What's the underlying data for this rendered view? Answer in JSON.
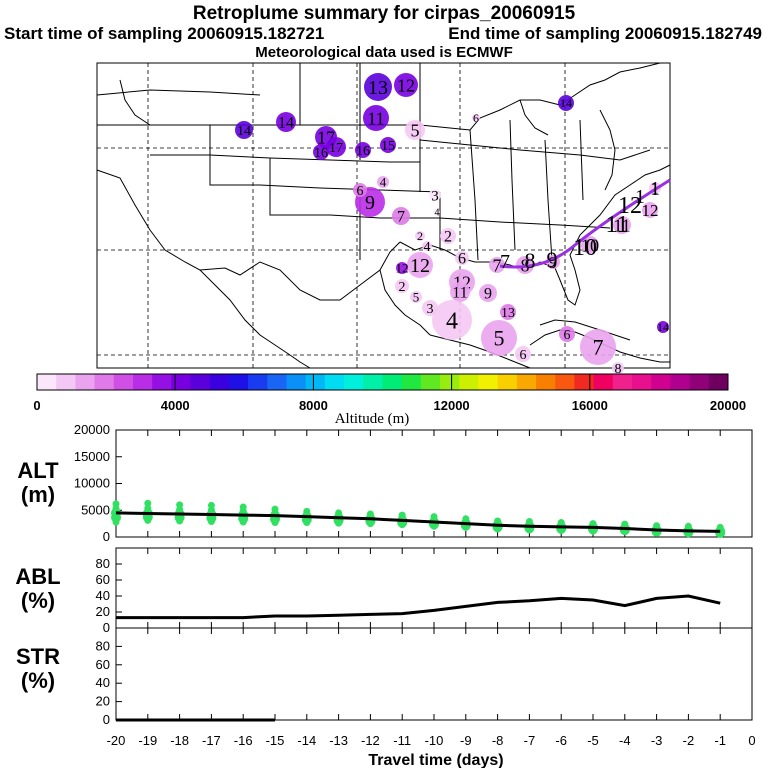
{
  "header": {
    "title": "Retroplume summary for cirpas_20060915",
    "start": "Start time of sampling 20060915.182721",
    "end": "End time of sampling 20060915.182749",
    "met": "Meteorological data used is ECMWF"
  },
  "colors": {
    "light_purple": "#e8a0f0",
    "mid_purple": "#c040e0",
    "deep_purple": "#8000d0",
    "blue": "#3010e0",
    "track": "#9a30e0",
    "green": "#30e060"
  },
  "colorbar": {
    "title": "Altitude (m)",
    "ticks": [
      "0",
      "4000",
      "8000",
      "12000",
      "16000",
      "20000"
    ],
    "colors": [
      "#fbe6fb",
      "#f4c8f4",
      "#eaa3ee",
      "#df7ae8",
      "#d050e6",
      "#b92de6",
      "#9710e3",
      "#7800e0",
      "#5a00dc",
      "#3a00e0",
      "#2010e8",
      "#1a3cf0",
      "#1a66f4",
      "#0a90f6",
      "#00b8f4",
      "#00dcf2",
      "#00f0dc",
      "#00f0a8",
      "#00ec78",
      "#20e840",
      "#60e820",
      "#98ec10",
      "#ccf000",
      "#f0f000",
      "#f8d000",
      "#f8a800",
      "#f88000",
      "#f85810",
      "#f02a20",
      "#f00060",
      "#f0208c",
      "#e8108c",
      "#d00090",
      "#b00090",
      "#900078",
      "#700060"
    ]
  },
  "map": {
    "plume_markers": [
      {
        "label": "13",
        "alt": 4800
      },
      {
        "label": "12",
        "alt": 4400
      },
      {
        "label": "14",
        "alt": 4000
      },
      {
        "label": "17",
        "alt": 4300
      },
      {
        "label": "11",
        "alt": 4200
      },
      {
        "label": "14",
        "alt": 4600
      },
      {
        "label": "14",
        "alt": 4500
      },
      {
        "label": "17",
        "alt": 4400
      },
      {
        "label": "5",
        "alt": 800
      },
      {
        "label": "6",
        "alt": 600
      },
      {
        "label": "16",
        "alt": 4300
      },
      {
        "label": "15",
        "alt": 4400
      },
      {
        "label": "16",
        "alt": 4200
      },
      {
        "label": "9",
        "alt": 2800
      },
      {
        "label": "6",
        "alt": 2200
      },
      {
        "label": "4",
        "alt": 1400
      },
      {
        "label": "7",
        "alt": 2200
      },
      {
        "label": "3",
        "alt": 500
      },
      {
        "label": "4",
        "alt": 500
      },
      {
        "label": "2",
        "alt": 1000
      },
      {
        "label": "4",
        "alt": 900
      },
      {
        "label": "12",
        "alt": 1200
      },
      {
        "label": "6",
        "alt": 1000
      },
      {
        "label": "7",
        "alt": 1200
      },
      {
        "label": "8",
        "alt": 1600
      },
      {
        "label": "9",
        "alt": 1500
      },
      {
        "label": "10",
        "alt": 1200
      },
      {
        "label": "11",
        "alt": 1300
      },
      {
        "label": "12",
        "alt": 1200
      },
      {
        "label": "1",
        "alt": 1000
      },
      {
        "label": "12",
        "alt": 1600
      },
      {
        "label": "11",
        "alt": 1500
      },
      {
        "label": "9",
        "alt": 1400
      },
      {
        "label": "2",
        "alt": 900
      },
      {
        "label": "5",
        "alt": 800
      },
      {
        "label": "3",
        "alt": 1000
      },
      {
        "label": "4",
        "alt": 1000
      },
      {
        "label": "13",
        "alt": 2000
      },
      {
        "label": "5",
        "alt": 1200
      },
      {
        "label": "6",
        "alt": 1100
      },
      {
        "label": "6",
        "alt": 1800
      },
      {
        "label": "7",
        "alt": 1200
      },
      {
        "label": "8",
        "alt": 900
      },
      {
        "label": "14",
        "alt": 4200
      },
      {
        "label": "12",
        "alt": 3800
      },
      {
        "label": "2",
        "alt": 1000
      }
    ],
    "track_labels": [
      "1",
      "1",
      "12",
      "11",
      "10",
      "9",
      "8",
      "7"
    ]
  },
  "chart_data": [
    {
      "type": "line",
      "panel": "ALT",
      "ylabel": "ALT\n(m)",
      "ylabel_lines": [
        "ALT",
        "(m)"
      ],
      "ylim": [
        0,
        20000
      ],
      "yticks": [
        "0",
        "5000",
        "10000",
        "15000",
        "20000"
      ],
      "x": [
        -20,
        -19,
        -18,
        -17,
        -16,
        -15,
        -14,
        -13,
        -12,
        -11,
        -10,
        -9,
        -8,
        -7,
        -6,
        -5,
        -4,
        -3,
        -2,
        -1
      ],
      "series": [
        {
          "name": "mean",
          "values": [
            4500,
            4400,
            4300,
            4200,
            4100,
            4000,
            3800,
            3600,
            3400,
            3100,
            2800,
            2500,
            2200,
            2000,
            1900,
            1800,
            1600,
            1300,
            1150,
            1050
          ]
        },
        {
          "name": "spread_high",
          "values": [
            6200,
            6300,
            6000,
            5900,
            5600,
            5200,
            4800,
            4500,
            4300,
            4100,
            3800,
            3400,
            3000,
            2900,
            2700,
            2500,
            2400,
            2100,
            2000,
            1800
          ]
        },
        {
          "name": "spread_low",
          "values": [
            2800,
            3100,
            3000,
            2900,
            2800,
            2700,
            2700,
            2600,
            2500,
            2300,
            2000,
            1800,
            1500,
            1300,
            1200,
            1100,
            1000,
            700,
            600,
            500
          ]
        }
      ]
    },
    {
      "type": "line",
      "panel": "ABL",
      "ylabel_lines": [
        "ABL",
        "(%)"
      ],
      "ylim": [
        0,
        100
      ],
      "yticks": [
        "0",
        "20",
        "40",
        "60",
        "80"
      ],
      "x": [
        -20,
        -19,
        -18,
        -17,
        -16,
        -15,
        -14,
        -13,
        -12,
        -11,
        -10,
        -9,
        -8,
        -7,
        -6,
        -5,
        -4,
        -3,
        -2,
        -1
      ],
      "series": [
        {
          "name": "ABL",
          "values": [
            13,
            13,
            13,
            13,
            13,
            15,
            15,
            16,
            17,
            18,
            22,
            27,
            32,
            34,
            37,
            35,
            28,
            37,
            40,
            31
          ]
        }
      ]
    },
    {
      "type": "line",
      "panel": "STR",
      "ylabel_lines": [
        "STR",
        "(%)"
      ],
      "ylim": [
        0,
        100
      ],
      "yticks": [
        "0",
        "20",
        "40",
        "60",
        "80"
      ],
      "x": [
        -20,
        -19,
        -18,
        -17,
        -16,
        -15
      ],
      "series": [
        {
          "name": "STR",
          "values": [
            0,
            0,
            0,
            0,
            0,
            0
          ]
        }
      ]
    }
  ],
  "xaxis": {
    "title": "Travel time (days)",
    "ticks": [
      "-20",
      "-19",
      "-18",
      "-17",
      "-16",
      "-15",
      "-14",
      "-13",
      "-12",
      "-11",
      "-10",
      "-9",
      "-8",
      "-7",
      "-6",
      "-5",
      "-4",
      "-3",
      "-2",
      "-1",
      "0"
    ]
  }
}
